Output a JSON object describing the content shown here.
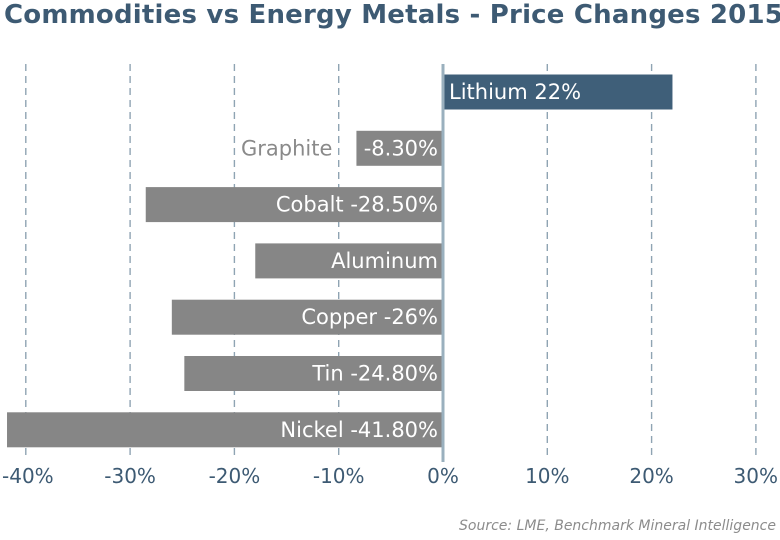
{
  "title": "Commodities vs Energy Metals - Price Changes 2015",
  "source": "Source: LME, Benchmark Mineral Intelligence",
  "colors": {
    "highlight": "#3f5f79",
    "bar": "#868686",
    "axis": "#9ab0be",
    "grid": "#8fa4b3",
    "tick_text": "#3d5a73",
    "outside_label": "#8a8a8a",
    "inside_label": "#ffffff"
  },
  "chart_data": {
    "type": "bar",
    "orientation": "horizontal",
    "title": "Commodities vs Energy Metals - Price Changes 2015",
    "xlabel": "",
    "ylabel": "",
    "xlim": [
      -42,
      30
    ],
    "xticks": [
      -40,
      -30,
      -20,
      -10,
      0,
      10,
      20,
      30
    ],
    "xtick_labels": [
      "-40%",
      "-30%",
      "-20%",
      "-10%",
      "0%",
      "10%",
      "20%",
      "30%"
    ],
    "grid": "vertical dashed",
    "legend": "none",
    "categories": [
      "Lithium",
      "Graphite",
      "Cobalt",
      "Aluminum",
      "Copper",
      "Tin",
      "Nickel"
    ],
    "values": [
      22,
      -8.3,
      -28.5,
      -18,
      -26,
      -24.8,
      -41.8
    ],
    "bars": [
      {
        "name": "Lithium",
        "value": 22,
        "label": "Lithium 22%",
        "highlight": true,
        "label_position": "inside-start"
      },
      {
        "name": "Graphite",
        "value": -8.3,
        "label_category": "Graphite",
        "label": "-8.30%",
        "highlight": false,
        "label_position": "split"
      },
      {
        "name": "Cobalt",
        "value": -28.5,
        "label": "Cobalt -28.50%",
        "highlight": false,
        "label_position": "inside-end"
      },
      {
        "name": "Aluminum",
        "value": -18,
        "label": "Aluminum",
        "highlight": false,
        "label_position": "inside-end"
      },
      {
        "name": "Copper",
        "value": -26,
        "label": "Copper -26%",
        "highlight": false,
        "label_position": "inside-end"
      },
      {
        "name": "Tin",
        "value": -24.8,
        "label": "Tin -24.80%",
        "highlight": false,
        "label_position": "inside-end"
      },
      {
        "name": "Nickel",
        "value": -41.8,
        "label": "Nickel -41.80%",
        "highlight": false,
        "label_position": "inside-end"
      }
    ]
  }
}
